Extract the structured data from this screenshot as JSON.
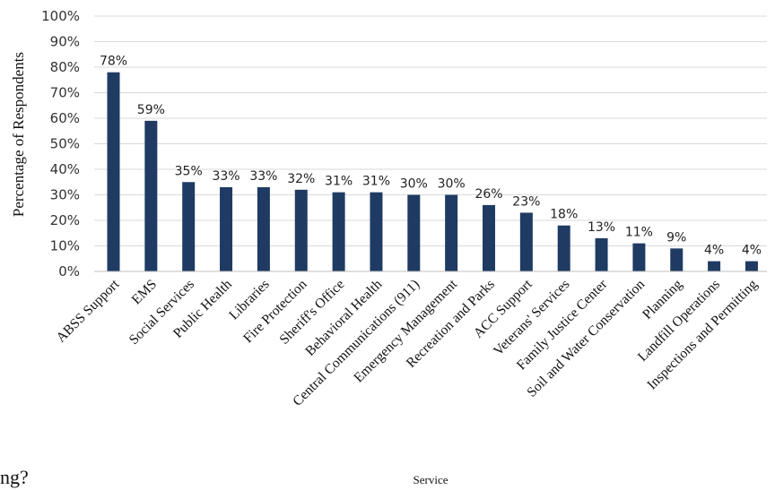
{
  "cut_off_text": "ng?",
  "chart_data": {
    "type": "bar",
    "title": "",
    "xlabel": "Service",
    "ylabel": "Percentage of Respondents",
    "ylim": [
      0,
      100
    ],
    "y_ticks": [
      "0%",
      "10%",
      "20%",
      "30%",
      "40%",
      "50%",
      "60%",
      "70%",
      "80%",
      "90%",
      "100%"
    ],
    "grid": true,
    "bar_color": "#1f3b63",
    "categories": [
      "ABSS Support",
      "EMS",
      "Social Services",
      "Public Health",
      "Libraries",
      "Fire Protection",
      "Sheriff's Office",
      "Behavioral Health",
      "Central Communications (911)",
      "Emergency Management",
      "Recreation and Parks",
      "ACC Support",
      "Veterans' Services",
      "Family Justice Center",
      "Soil and Water Conservation",
      "Planning",
      "Landfill Operations",
      "Inspections and Permitting"
    ],
    "values": [
      78,
      59,
      35,
      33,
      33,
      32,
      31,
      31,
      30,
      30,
      26,
      23,
      18,
      13,
      11,
      9,
      4,
      4
    ],
    "data_labels": [
      "78%",
      "59%",
      "35%",
      "33%",
      "33%",
      "32%",
      "31%",
      "31%",
      "30%",
      "30%",
      "26%",
      "23%",
      "18%",
      "13%",
      "11%",
      "9%",
      "4%",
      "4%"
    ]
  }
}
